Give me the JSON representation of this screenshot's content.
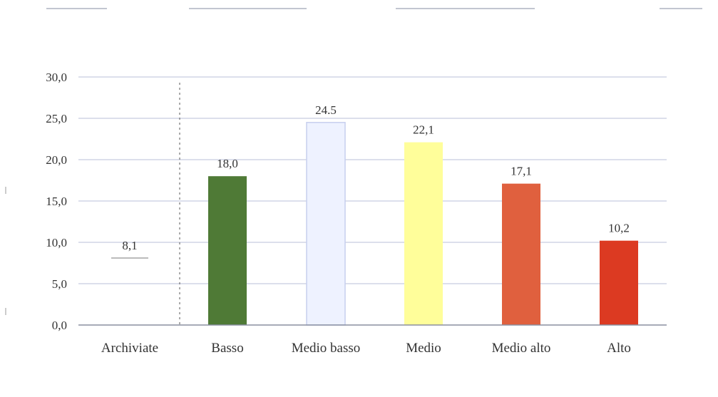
{
  "chart_data": {
    "type": "bar",
    "title": "",
    "xlabel": "",
    "ylabel": "",
    "categories": [
      "Archiviate",
      "Basso",
      "Medio basso",
      "Medio",
      "Medio alto",
      "Alto"
    ],
    "values": [
      8.1,
      18.0,
      24.5,
      22.1,
      17.1,
      10.2
    ],
    "value_labels": [
      "8,1",
      "18,0",
      "24.5",
      "22,1",
      "17,1",
      "10,2"
    ],
    "bar_colors": [
      "#ffffff",
      "#4f7a36",
      "#eef2ff",
      "#fffe9a",
      "#e0603e",
      "#dc3a22"
    ],
    "ylim": [
      0,
      30
    ],
    "yticks": [
      0,
      5,
      10,
      15,
      20,
      25,
      30
    ],
    "ytick_labels": [
      "0,0",
      "5,0",
      "10,0",
      "15,0",
      "20,0",
      "25,0",
      "30,0"
    ],
    "grid": true,
    "legend": "none"
  },
  "colors": {
    "gridline": "#b8bfd8",
    "axis": "#8a8fa0",
    "text": "#333333"
  }
}
